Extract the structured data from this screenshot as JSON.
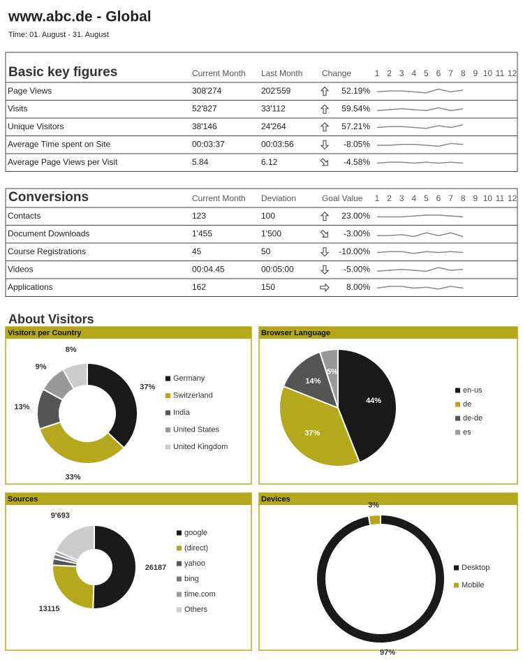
{
  "header": {
    "title": "www.abc.de - Global",
    "subtitle": "Time: 01. August - 31. August"
  },
  "tables": [
    {
      "title": "Basic key figures",
      "columns": [
        "Current Month",
        "Last Month",
        "Change"
      ],
      "months": [
        1,
        2,
        3,
        4,
        5,
        6,
        7,
        8,
        9,
        10,
        11,
        12
      ],
      "rows": [
        {
          "label": "Page Views",
          "values": [
            "308'274",
            "202'559"
          ],
          "trend": "up",
          "change": "52.19%",
          "spark": [
            4,
            5,
            5,
            4,
            3,
            7,
            4,
            6
          ]
        },
        {
          "label": "Visits",
          "values": [
            "52'827",
            "33'112"
          ],
          "trend": "up",
          "change": "59.54%",
          "spark": [
            3,
            4,
            5,
            4,
            3,
            6,
            3,
            5
          ]
        },
        {
          "label": "Unique Visitors",
          "values": [
            "38'146",
            "24'264"
          ],
          "trend": "up",
          "change": "57.21%",
          "spark": [
            4,
            5,
            5,
            4,
            3,
            6,
            4,
            7
          ]
        },
        {
          "label": "Average Time spent on Site",
          "values": [
            "00:03:37",
            "00:03:56"
          ],
          "trend": "down",
          "change": "-8.05%",
          "spark": [
            4,
            4,
            5,
            5,
            4,
            3,
            6,
            5
          ]
        },
        {
          "label": "Average Page Views per Visit",
          "values": [
            "5.84",
            "6.12"
          ],
          "trend": "down-right",
          "change": "-4.58%",
          "spark": [
            4,
            5,
            5,
            4,
            5,
            4,
            5,
            4
          ]
        }
      ]
    },
    {
      "title": "Conversions",
      "columns": [
        "Current Month",
        "Deviation",
        "Goal Value"
      ],
      "months": [
        1,
        2,
        3,
        4,
        5,
        6,
        7,
        8,
        9,
        10,
        11,
        12
      ],
      "rows": [
        {
          "label": "Contacts",
          "values": [
            "123",
            "100"
          ],
          "trend": "up",
          "change": "23.00%",
          "spark": [
            4,
            4,
            4,
            5,
            6,
            6,
            5,
            4
          ]
        },
        {
          "label": "Document Downloads",
          "values": [
            "1'455",
            "1'500"
          ],
          "trend": "down-right",
          "change": "-3.00%",
          "spark": [
            3,
            3,
            4,
            2,
            6,
            3,
            6,
            2
          ]
        },
        {
          "label": "Course Registrations",
          "values": [
            "45",
            "50"
          ],
          "trend": "down",
          "change": "-10.00%",
          "spark": [
            4,
            5,
            5,
            3,
            5,
            4,
            5,
            4
          ]
        },
        {
          "label": "Videos",
          "values": [
            "00:04.45",
            "00:05:00"
          ],
          "trend": "down",
          "change": "-5.00%",
          "spark": [
            3,
            4,
            5,
            4,
            3,
            7,
            4,
            5
          ]
        },
        {
          "label": "Applications",
          "values": [
            "162",
            "150"
          ],
          "trend": "right",
          "change": "8.00%",
          "spark": [
            4,
            6,
            6,
            4,
            5,
            3,
            6,
            4
          ]
        }
      ]
    }
  ],
  "visitors": {
    "title": "About Visitors"
  },
  "chart_data": [
    {
      "type": "donut",
      "title": "Visitors per Country",
      "categories": [
        "Germany",
        "Switzerland",
        "India",
        "United States",
        "United Kingdom"
      ],
      "values": [
        37,
        33,
        13,
        9,
        8
      ],
      "value_labels": [
        "37%",
        "33%",
        "13%",
        "9%",
        "8%"
      ],
      "colors": [
        "#1a1a1a",
        "#b5a81c",
        "#555555",
        "#999999",
        "#cccccc"
      ]
    },
    {
      "type": "pie",
      "title": "Browser Language",
      "categories": [
        "en-us",
        "de",
        "de-de",
        "es"
      ],
      "values": [
        44,
        37,
        14,
        5
      ],
      "value_labels": [
        "44%",
        "37%",
        "14%",
        "5%"
      ],
      "colors": [
        "#1a1a1a",
        "#b5a81c",
        "#555555",
        "#999999"
      ]
    },
    {
      "type": "donut",
      "title": "Sources",
      "categories": [
        "google",
        "(direct)",
        "yahoo",
        "bing",
        "time.com",
        "Others"
      ],
      "values": [
        26187,
        13115,
        1300,
        900,
        700,
        9693
      ],
      "value_labels": [
        "26187",
        "13115",
        null,
        null,
        null,
        "9'693"
      ],
      "colors": [
        "#1a1a1a",
        "#b5a81c",
        "#555555",
        "#777777",
        "#999999",
        "#cccccc"
      ]
    },
    {
      "type": "donut",
      "title": "Devices",
      "categories": [
        "Desktop",
        "Mobile"
      ],
      "values": [
        97,
        3
      ],
      "value_labels": [
        "97%",
        "3%"
      ],
      "colors": [
        "#1a1a1a",
        "#b5a81c"
      ]
    }
  ]
}
